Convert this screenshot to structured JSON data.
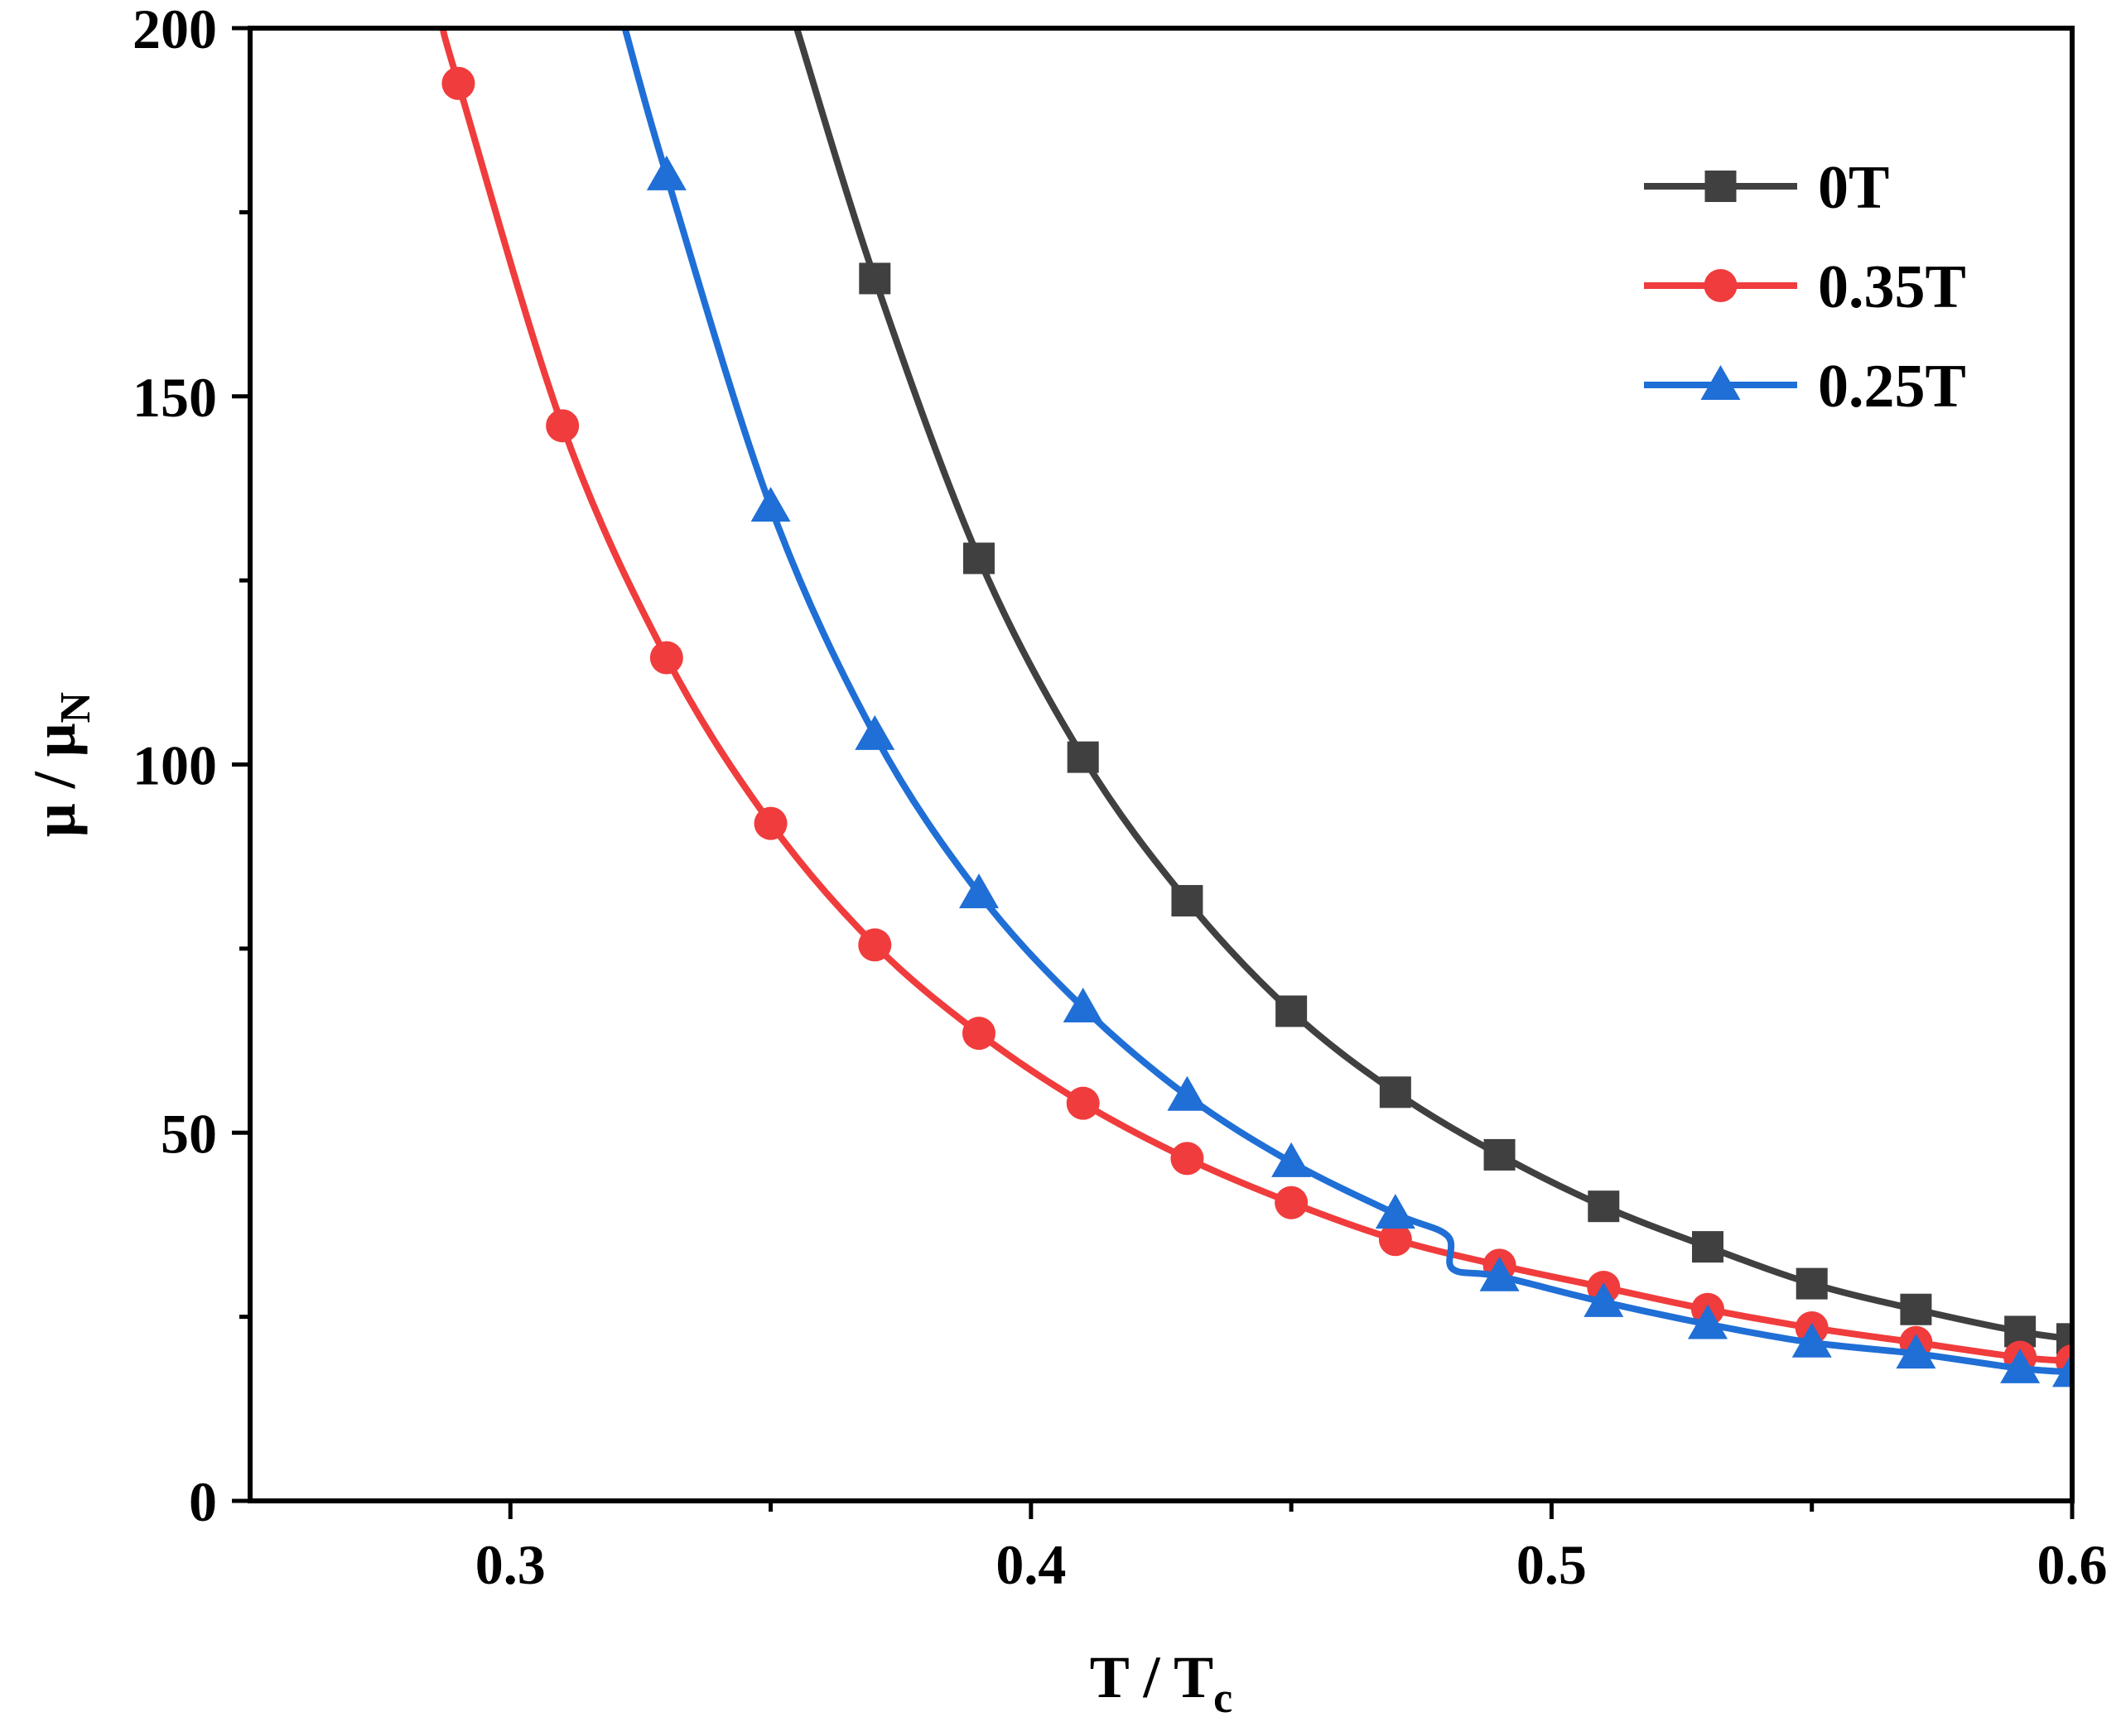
{
  "chart_data": {
    "type": "line",
    "title": "",
    "xlabel": "T / T",
    "xlabel_sub": "c",
    "ylabel": "μ / μ",
    "ylabel_sub": "N",
    "xlim": [
      0.25,
      0.6
    ],
    "ylim": [
      0,
      200
    ],
    "xticks": [
      0.3,
      0.4,
      0.5,
      0.6
    ],
    "xtick_labels": [
      "0.3",
      "0.4",
      "0.5",
      "0.6"
    ],
    "xminor_ticks": [
      0.35,
      0.45,
      0.55
    ],
    "yticks": [
      0,
      50,
      100,
      150,
      200
    ],
    "ytick_labels": [
      "0",
      "50",
      "100",
      "150",
      "200"
    ],
    "yminor_ticks": [
      25,
      75,
      125,
      175
    ],
    "grid": false,
    "legend_position": "top-right",
    "series": [
      {
        "name": "0T",
        "color": "#404040",
        "marker": "square",
        "x": [
          0.37,
          0.39,
          0.41,
          0.43,
          0.45,
          0.47,
          0.49,
          0.51,
          0.53,
          0.55,
          0.57,
          0.59,
          0.6
        ],
        "values": [
          166,
          128,
          101,
          81.5,
          66.5,
          55.5,
          47,
          40,
          34.5,
          29.5,
          26,
          23,
          22
        ],
        "curve_x": [
          0.355,
          0.37,
          0.39,
          0.41,
          0.43,
          0.45,
          0.47,
          0.49,
          0.51,
          0.53,
          0.55,
          0.57,
          0.59,
          0.6
        ],
        "curve_y": [
          200,
          166,
          128,
          101,
          81.5,
          66.5,
          55.5,
          47,
          40,
          34.5,
          29.5,
          26,
          23,
          22
        ]
      },
      {
        "name": "0.35T",
        "color": "#f03c3c",
        "marker": "circle",
        "x": [
          0.29,
          0.31,
          0.33,
          0.35,
          0.37,
          0.39,
          0.41,
          0.43,
          0.45,
          0.47,
          0.49,
          0.51,
          0.53,
          0.55,
          0.57,
          0.59,
          0.6
        ],
        "values": [
          192.5,
          146,
          114.5,
          92,
          75.5,
          63.5,
          54,
          46.5,
          40.5,
          35.5,
          32,
          29,
          26,
          23.5,
          21.5,
          19.5,
          19
        ],
        "curve_x": [
          0.287,
          0.29,
          0.31,
          0.33,
          0.35,
          0.37,
          0.39,
          0.41,
          0.43,
          0.45,
          0.47,
          0.49,
          0.51,
          0.53,
          0.55,
          0.57,
          0.59,
          0.6
        ],
        "curve_y": [
          200,
          192.5,
          146,
          114.5,
          92,
          75.5,
          63.5,
          54,
          46.5,
          40.5,
          35.5,
          32,
          29,
          26,
          23.5,
          21.5,
          19.5,
          19
        ]
      },
      {
        "name": "0.25T",
        "color": "#1f6fd6",
        "marker": "triangle",
        "x": [
          0.33,
          0.35,
          0.37,
          0.39,
          0.41,
          0.43,
          0.45,
          0.47,
          0.49,
          0.51,
          0.53,
          0.55,
          0.57,
          0.59,
          0.6
        ],
        "values": [
          180,
          135,
          104,
          82.5,
          67,
          55,
          46,
          39,
          30.5,
          27,
          24,
          21.5,
          20,
          18,
          17.5
        ],
        "curve_x": [
          0.322,
          0.33,
          0.35,
          0.37,
          0.39,
          0.41,
          0.43,
          0.45,
          0.47,
          0.48,
          0.481,
          0.49,
          0.51,
          0.53,
          0.55,
          0.57,
          0.59,
          0.6
        ],
        "curve_y": [
          200,
          180,
          135,
          104,
          82.5,
          67,
          55,
          46,
          39,
          36,
          31.5,
          30.5,
          27,
          24,
          21.5,
          20,
          18,
          17.5
        ]
      }
    ]
  }
}
